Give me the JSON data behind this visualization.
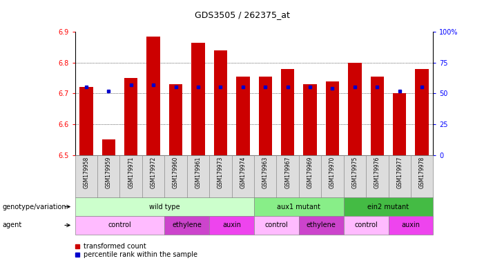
{
  "title": "GDS3505 / 262375_at",
  "samples": [
    "GSM179958",
    "GSM179959",
    "GSM179971",
    "GSM179972",
    "GSM179960",
    "GSM179961",
    "GSM179973",
    "GSM179974",
    "GSM179963",
    "GSM179967",
    "GSM179969",
    "GSM179970",
    "GSM179975",
    "GSM179976",
    "GSM179977",
    "GSM179978"
  ],
  "bar_values": [
    6.72,
    6.55,
    6.75,
    6.885,
    6.73,
    6.865,
    6.84,
    6.755,
    6.755,
    6.78,
    6.73,
    6.74,
    6.8,
    6.755,
    6.7,
    6.78
  ],
  "percentile_pct": [
    55,
    52,
    57,
    57,
    55,
    55,
    55,
    55,
    55,
    55,
    55,
    54,
    55,
    55,
    52,
    55
  ],
  "ylim": [
    6.5,
    6.9
  ],
  "yticks": [
    6.5,
    6.6,
    6.7,
    6.8,
    6.9
  ],
  "right_yticks": [
    0,
    25,
    50,
    75,
    100
  ],
  "right_ytick_labels": [
    "0",
    "25",
    "50",
    "75",
    "100%"
  ],
  "bar_color": "#cc0000",
  "percentile_color": "#0000cc",
  "genotype_groups": [
    {
      "label": "wild type",
      "start": 0,
      "end": 8,
      "color": "#ccffcc"
    },
    {
      "label": "aux1 mutant",
      "start": 8,
      "end": 12,
      "color": "#88ee88"
    },
    {
      "label": "ein2 mutant",
      "start": 12,
      "end": 16,
      "color": "#44bb44"
    }
  ],
  "agent_groups": [
    {
      "label": "control",
      "start": 0,
      "end": 4,
      "color": "#ffbbff"
    },
    {
      "label": "ethylene",
      "start": 4,
      "end": 6,
      "color": "#cc44cc"
    },
    {
      "label": "auxin",
      "start": 6,
      "end": 8,
      "color": "#ee44ee"
    },
    {
      "label": "control",
      "start": 8,
      "end": 10,
      "color": "#ffbbff"
    },
    {
      "label": "ethylene",
      "start": 10,
      "end": 12,
      "color": "#cc44cc"
    },
    {
      "label": "control",
      "start": 12,
      "end": 14,
      "color": "#ffbbff"
    },
    {
      "label": "auxin",
      "start": 14,
      "end": 16,
      "color": "#ee44ee"
    }
  ],
  "legend_items": [
    {
      "label": "transformed count",
      "color": "#cc0000"
    },
    {
      "label": "percentile rank within the sample",
      "color": "#0000cc"
    }
  ],
  "title_fontsize": 9
}
